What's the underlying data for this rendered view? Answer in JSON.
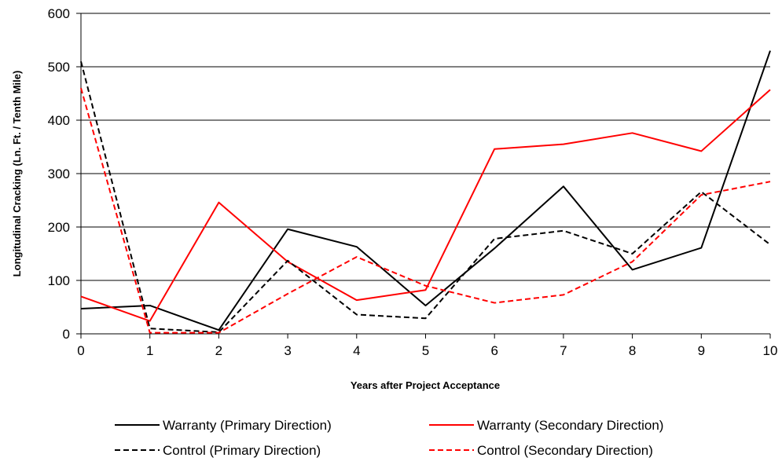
{
  "chart_data": {
    "type": "line",
    "title": "",
    "xlabel": "Years after Project Acceptance",
    "ylabel": "Longitudinal Cracking (Ln. Ft. / Tenth Mile)",
    "x": [
      0,
      1,
      2,
      3,
      4,
      5,
      6,
      7,
      8,
      9,
      10
    ],
    "xlim": [
      0,
      10
    ],
    "ylim": [
      0,
      600
    ],
    "yticks": [
      0,
      100,
      200,
      300,
      400,
      500,
      600
    ],
    "grid": "horizontal major gridlines",
    "legend_position": "bottom",
    "series": [
      {
        "name": "Warranty (Primary Direction)",
        "color": "#000000",
        "dash": "solid",
        "values": [
          47,
          53,
          7,
          196,
          163,
          53,
          160,
          276,
          120,
          161,
          530
        ]
      },
      {
        "name": "Warranty (Secondary Direction)",
        "color": "#ff0000",
        "dash": "solid",
        "values": [
          70,
          24,
          246,
          135,
          63,
          82,
          346,
          355,
          376,
          342,
          457
        ]
      },
      {
        "name": "Control (Primary Direction)",
        "color": "#000000",
        "dash": "dashed",
        "values": [
          510,
          10,
          3,
          137,
          36,
          29,
          178,
          193,
          150,
          266,
          167
        ]
      },
      {
        "name": "Control (Secondary Direction)",
        "color": "#ff0000",
        "dash": "dashed",
        "values": [
          460,
          2,
          2,
          75,
          144,
          90,
          58,
          73,
          135,
          260,
          285
        ]
      }
    ]
  }
}
